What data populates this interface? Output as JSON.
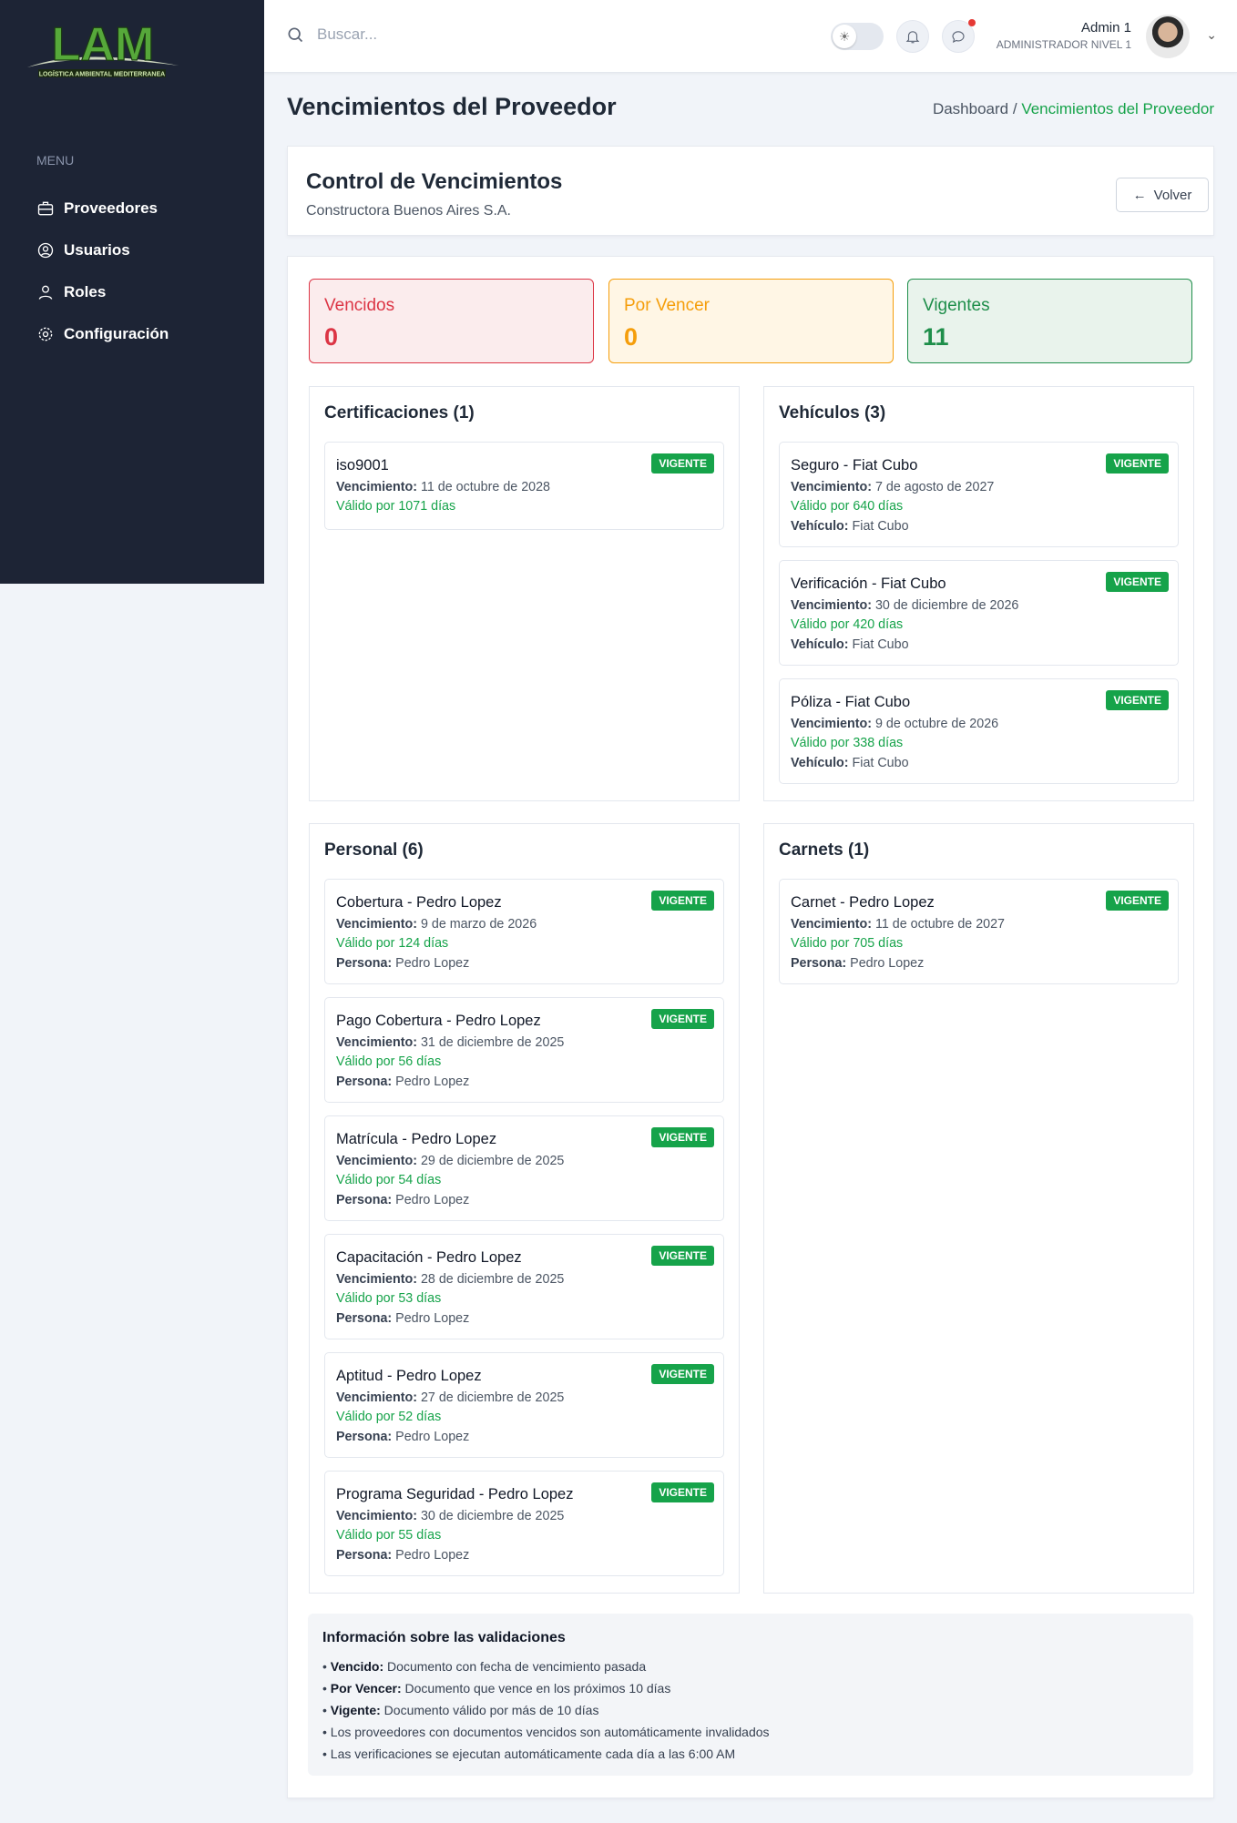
{
  "logo": {
    "text": "LAM",
    "tagline": "LOGÍSTICA AMBIENTAL MEDITERRANEA"
  },
  "sidebar": {
    "menu_label": "MENU",
    "items": [
      {
        "label": "Proveedores",
        "icon": "briefcase-icon"
      },
      {
        "label": "Usuarios",
        "icon": "user-circle-icon"
      },
      {
        "label": "Roles",
        "icon": "user-icon"
      },
      {
        "label": "Configuración",
        "icon": "gear-icon"
      }
    ]
  },
  "header": {
    "search_placeholder": "Buscar...",
    "user_name": "Admin 1",
    "user_role": "ADMINISTRADOR NIVEL 1"
  },
  "page": {
    "title": "Vencimientos del Proveedor",
    "breadcrumb": [
      "Dashboard /",
      "Vencimientos del Proveedor"
    ]
  },
  "control": {
    "title": "Control de Vencimientos",
    "subtitle": "Constructora Buenos Aires S.A.",
    "back_label": "Volver"
  },
  "stats": [
    {
      "label": "Vencidos",
      "value": "0",
      "color": "#dc3545",
      "bg": "#fbeced"
    },
    {
      "label": "Por Vencer",
      "value": "0",
      "color": "#f59e0b",
      "bg": "#fff6e5"
    },
    {
      "label": "Vigentes",
      "value": "11",
      "color": "#1e8e4a",
      "bg": "#e9f3ec"
    }
  ],
  "sections": [
    {
      "title": "Certificaciones (1)",
      "items": [
        {
          "name": "iso9001",
          "status": "VIGENTE",
          "vencimiento_label": "Vencimiento:",
          "vencimiento": "11 de octubre de 2028",
          "valid": "Válido por 1071 días"
        }
      ]
    },
    {
      "title": "Vehículos (3)",
      "items": [
        {
          "name": "Seguro - Fiat Cubo",
          "status": "VIGENTE",
          "vencimiento_label": "Vencimiento:",
          "vencimiento": "7 de agosto de 2027",
          "valid": "Válido por 640 días",
          "extra_label": "Vehículo:",
          "extra": "Fiat Cubo"
        },
        {
          "name": "Verificación - Fiat Cubo",
          "status": "VIGENTE",
          "vencimiento_label": "Vencimiento:",
          "vencimiento": "30 de diciembre de 2026",
          "valid": "Válido por 420 días",
          "extra_label": "Vehículo:",
          "extra": "Fiat Cubo"
        },
        {
          "name": "Póliza - Fiat Cubo",
          "status": "VIGENTE",
          "vencimiento_label": "Vencimiento:",
          "vencimiento": "9 de octubre de 2026",
          "valid": "Válido por 338 días",
          "extra_label": "Vehículo:",
          "extra": "Fiat Cubo"
        }
      ]
    },
    {
      "title": "Personal (6)",
      "items": [
        {
          "name": "Cobertura - Pedro Lopez",
          "status": "VIGENTE",
          "vencimiento_label": "Vencimiento:",
          "vencimiento": "9 de marzo de 2026",
          "valid": "Válido por 124 días",
          "extra_label": "Persona:",
          "extra": "Pedro Lopez"
        },
        {
          "name": "Pago Cobertura - Pedro Lopez",
          "status": "VIGENTE",
          "vencimiento_label": "Vencimiento:",
          "vencimiento": "31 de diciembre de 2025",
          "valid": "Válido por 56 días",
          "extra_label": "Persona:",
          "extra": "Pedro Lopez"
        },
        {
          "name": "Matrícula - Pedro Lopez",
          "status": "VIGENTE",
          "vencimiento_label": "Vencimiento:",
          "vencimiento": "29 de diciembre de 2025",
          "valid": "Válido por 54 días",
          "extra_label": "Persona:",
          "extra": "Pedro Lopez"
        },
        {
          "name": "Capacitación - Pedro Lopez",
          "status": "VIGENTE",
          "vencimiento_label": "Vencimiento:",
          "vencimiento": "28 de diciembre de 2025",
          "valid": "Válido por 53 días",
          "extra_label": "Persona:",
          "extra": "Pedro Lopez"
        },
        {
          "name": "Aptitud - Pedro Lopez",
          "status": "VIGENTE",
          "vencimiento_label": "Vencimiento:",
          "vencimiento": "27 de diciembre de 2025",
          "valid": "Válido por 52 días",
          "extra_label": "Persona:",
          "extra": "Pedro Lopez"
        },
        {
          "name": "Programa Seguridad - Pedro Lopez",
          "status": "VIGENTE",
          "vencimiento_label": "Vencimiento:",
          "vencimiento": "30 de diciembre de 2025",
          "valid": "Válido por 55 días",
          "extra_label": "Persona:",
          "extra": "Pedro Lopez"
        }
      ]
    },
    {
      "title": "Carnets (1)",
      "items": [
        {
          "name": "Carnet - Pedro Lopez",
          "status": "VIGENTE",
          "vencimiento_label": "Vencimiento:",
          "vencimiento": "11 de octubre de 2027",
          "valid": "Válido por 705 días",
          "extra_label": "Persona:",
          "extra": "Pedro Lopez"
        }
      ]
    }
  ],
  "info": {
    "title": "Información sobre las validaciones",
    "items": [
      {
        "label": "Vencido:",
        "text": " Documento con fecha de vencimiento pasada"
      },
      {
        "label": "Por Vencer:",
        "text": " Documento que vence en los próximos 10 días"
      },
      {
        "label": "Vigente:",
        "text": " Documento válido por más de 10 días"
      },
      {
        "label": "",
        "text": "Los proveedores con documentos vencidos son automáticamente invalidados"
      },
      {
        "label": "",
        "text": "Las verificaciones se ejecutan automáticamente cada día a las 6:00 AM"
      }
    ]
  },
  "colors": {
    "sidebar": "#1d2435",
    "accent": "#16a34a"
  }
}
